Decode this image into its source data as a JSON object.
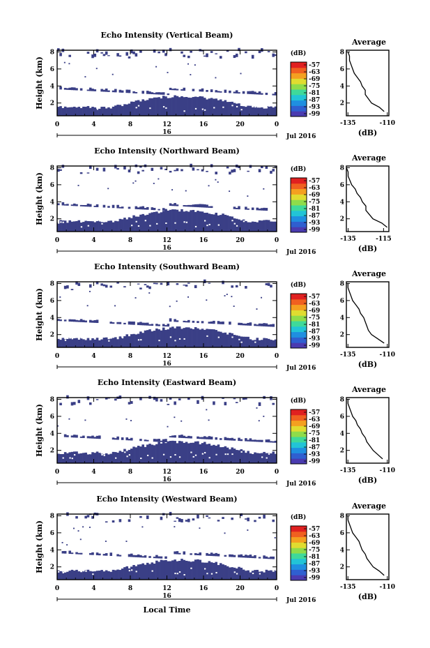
{
  "figure": {
    "xlabel": "Local Time",
    "date_label": "Jul 2016",
    "date_tick": "16"
  },
  "chart_data": [
    {
      "type": "heatmap",
      "title": "Echo Intensity (Vertical Beam)",
      "ylabel": "Height (km)",
      "xlabel": "Local Time",
      "x_ticks": [
        "0",
        "4",
        "8",
        "12",
        "16",
        "20",
        "0"
      ],
      "y_ticks": [
        "2",
        "4",
        "6",
        "8"
      ],
      "xlim": [
        0,
        24
      ],
      "ylim": [
        0.5,
        8.2
      ],
      "colorbar": {
        "unit": "(dB)",
        "ticks": [
          "-57",
          "-63",
          "-69",
          "-75",
          "-81",
          "-87",
          "-93",
          "-99"
        ]
      },
      "avg_profile": {
        "title": "Average",
        "xlabel": "(dB)",
        "x_ticks": [
          "-135",
          "-110"
        ],
        "y_ticks": [
          "2",
          "4",
          "6",
          "8"
        ],
        "xlim": [
          -136,
          -109
        ],
        "ylim": [
          0.5,
          8.2
        ],
        "height_km": [
          1.0,
          1.5,
          2.0,
          2.5,
          3.0,
          3.5,
          4.0,
          4.5,
          5.0,
          5.5,
          6.0,
          6.5,
          7.0,
          7.5,
          8.0
        ],
        "db": [
          -112,
          -115,
          -120,
          -122,
          -124,
          -124,
          -126,
          -127,
          -129,
          -131,
          -132,
          -133,
          -134,
          -134,
          -135
        ]
      }
    },
    {
      "type": "heatmap",
      "title": "Echo Intensity (Northward Beam)",
      "ylabel": "Height (km)",
      "xlabel": "Local Time",
      "x_ticks": [
        "0",
        "4",
        "8",
        "12",
        "16",
        "20",
        "0"
      ],
      "y_ticks": [
        "2",
        "4",
        "6",
        "8"
      ],
      "xlim": [
        0,
        24
      ],
      "ylim": [
        0.5,
        8.2
      ],
      "colorbar": {
        "unit": "(dB)",
        "ticks": [
          "-57",
          "-63",
          "-69",
          "-75",
          "-81",
          "-87",
          "-93",
          "-99"
        ]
      },
      "avg_profile": {
        "title": "Average",
        "xlabel": "(dB)",
        "x_ticks": [
          "-135",
          "-115"
        ],
        "y_ticks": [
          "2",
          "4",
          "6",
          "8"
        ],
        "xlim": [
          -136,
          -112
        ],
        "ylim": [
          0.5,
          8.2
        ],
        "height_km": [
          1.0,
          1.5,
          2.0,
          2.5,
          3.0,
          3.5,
          4.0,
          4.5,
          5.0,
          5.5,
          6.0,
          6.5,
          7.0,
          7.5,
          8.0
        ],
        "db": [
          -113,
          -116,
          -121,
          -123,
          -125,
          -125,
          -127,
          -128,
          -130,
          -131,
          -133,
          -134,
          -135,
          -135,
          -136
        ]
      }
    },
    {
      "type": "heatmap",
      "title": "Echo Intensity (Southward Beam)",
      "ylabel": "Height (km)",
      "xlabel": "Local Time",
      "x_ticks": [
        "0",
        "4",
        "8",
        "12",
        "16",
        "20",
        "0"
      ],
      "y_ticks": [
        "2",
        "4",
        "6",
        "8"
      ],
      "xlim": [
        0,
        24
      ],
      "ylim": [
        0.5,
        8.2
      ],
      "colorbar": {
        "unit": "(dB)",
        "ticks": [
          "-57",
          "-63",
          "-69",
          "-75",
          "-81",
          "-87",
          "-93",
          "-99"
        ]
      },
      "avg_profile": {
        "title": "Average",
        "xlabel": "(dB)",
        "x_ticks": [
          "-135",
          "-110"
        ],
        "y_ticks": [
          "2",
          "4",
          "6",
          "8"
        ],
        "xlim": [
          -136,
          -109
        ],
        "ylim": [
          0.5,
          8.2
        ],
        "height_km": [
          1.0,
          1.5,
          2.0,
          2.5,
          3.0,
          3.5,
          4.0,
          4.5,
          5.0,
          5.5,
          6.0,
          6.5,
          7.0,
          7.5,
          8.0
        ],
        "db": [
          -112,
          -116,
          -120,
          -122,
          -123,
          -124,
          -125,
          -127,
          -128,
          -130,
          -132,
          -133,
          -134,
          -135,
          -135
        ]
      }
    },
    {
      "type": "heatmap",
      "title": "Echo Intensity (Eastward Beam)",
      "ylabel": "Height (km)",
      "xlabel": "Local Time",
      "x_ticks": [
        "0",
        "4",
        "8",
        "12",
        "16",
        "20",
        "0"
      ],
      "y_ticks": [
        "2",
        "4",
        "6",
        "8"
      ],
      "xlim": [
        0,
        24
      ],
      "ylim": [
        0.5,
        8.2
      ],
      "colorbar": {
        "unit": "(dB)",
        "ticks": [
          "-57",
          "-63",
          "-69",
          "-75",
          "-81",
          "-87",
          "-93",
          "-99"
        ]
      },
      "avg_profile": {
        "title": "Average",
        "xlabel": "(dB)",
        "x_ticks": [
          "-135",
          "-110"
        ],
        "y_ticks": [
          "2",
          "4",
          "6",
          "8"
        ],
        "xlim": [
          -136,
          -109
        ],
        "ylim": [
          0.5,
          8.2
        ],
        "height_km": [
          1.0,
          1.5,
          2.0,
          2.5,
          3.0,
          3.5,
          4.0,
          4.5,
          5.0,
          5.5,
          6.0,
          6.5,
          7.0,
          7.5,
          8.0
        ],
        "db": [
          -113,
          -116,
          -119,
          -121,
          -123,
          -124,
          -126,
          -127,
          -129,
          -130,
          -132,
          -133,
          -134,
          -135,
          -135
        ]
      }
    },
    {
      "type": "heatmap",
      "title": "Echo Intensity (Westward Beam)",
      "ylabel": "Height (km)",
      "xlabel": "Local Time",
      "x_ticks": [
        "0",
        "4",
        "8",
        "12",
        "16",
        "20",
        "0"
      ],
      "y_ticks": [
        "2",
        "4",
        "6",
        "8"
      ],
      "xlim": [
        0,
        24
      ],
      "ylim": [
        0.5,
        8.2
      ],
      "colorbar": {
        "unit": "(dB)",
        "ticks": [
          "-57",
          "-63",
          "-69",
          "-75",
          "-81",
          "-87",
          "-93",
          "-99"
        ]
      },
      "avg_profile": {
        "title": "Average",
        "xlabel": "(dB)",
        "x_ticks": [
          "-135",
          "-110"
        ],
        "y_ticks": [
          "2",
          "4",
          "6",
          "8"
        ],
        "xlim": [
          -136,
          -109
        ],
        "ylim": [
          0.5,
          8.2
        ],
        "height_km": [
          1.0,
          1.5,
          2.0,
          2.5,
          3.0,
          3.5,
          4.0,
          4.5,
          5.0,
          5.5,
          6.0,
          6.5,
          7.0,
          7.5,
          8.0
        ],
        "db": [
          -112,
          -115,
          -119,
          -121,
          -123,
          -124,
          -126,
          -127,
          -128,
          -130,
          -132,
          -133,
          -134,
          -135,
          -135
        ]
      }
    }
  ],
  "colors": {
    "echo": "#3a3f86",
    "echo_dark": "#2e3578",
    "colorbar": [
      "#4a3bb0",
      "#2f5fd0",
      "#1f8fe0",
      "#22c4d6",
      "#3fd99a",
      "#8fdc4a",
      "#e0dc30",
      "#f4a020",
      "#f06020",
      "#e02020"
    ]
  }
}
